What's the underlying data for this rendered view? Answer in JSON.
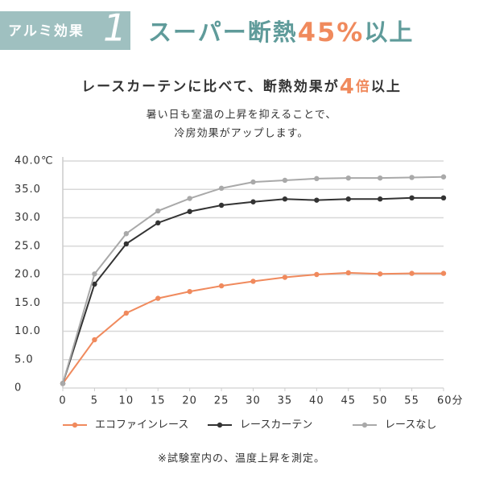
{
  "header": {
    "badge": "アルミ効果",
    "badge_number": "1",
    "title": [
      "スーパー断熱",
      "45%",
      "以上"
    ],
    "subtitle": [
      "レースカーテンに比べて、断熱効果が",
      "4",
      "倍",
      "以上"
    ],
    "description": [
      "暑い日も室温の上昇を抑えることで、",
      "冷房効果がアップします。"
    ]
  },
  "chart_data": {
    "type": "line",
    "x": [
      0,
      5,
      10,
      15,
      20,
      25,
      30,
      35,
      40,
      45,
      50,
      55,
      60
    ],
    "series": [
      {
        "name": "エコファインレース",
        "color": "#f08a5d",
        "values": [
          0.8,
          8.5,
          13.2,
          15.8,
          17.0,
          18.0,
          18.8,
          19.5,
          20.0,
          20.3,
          20.1,
          20.2,
          20.2
        ]
      },
      {
        "name": "レースカーテン",
        "color": "#333333",
        "values": [
          0.8,
          18.3,
          25.4,
          29.1,
          31.1,
          32.2,
          32.8,
          33.3,
          33.1,
          33.3,
          33.3,
          33.5,
          33.5
        ]
      },
      {
        "name": "レースなし",
        "color": "#a9a9a9",
        "values": [
          0.8,
          20.1,
          27.2,
          31.2,
          33.4,
          35.2,
          36.3,
          36.6,
          36.9,
          37.0,
          37.0,
          37.1,
          37.2
        ]
      }
    ],
    "xlim": [
      0,
      60
    ],
    "ylim": [
      0,
      40
    ],
    "xticks": [
      0,
      5,
      10,
      15,
      20,
      25,
      30,
      35,
      40,
      45,
      50,
      55,
      {
        "value": 60,
        "label": "60分"
      }
    ],
    "yticks": [
      0,
      {
        "value": 5,
        "label": "5.0"
      },
      {
        "value": 10,
        "label": "10.0"
      },
      {
        "value": 15,
        "label": "15.0"
      },
      {
        "value": 20,
        "label": "20.0"
      },
      {
        "value": 25,
        "label": "25.0"
      },
      {
        "value": 30,
        "label": "30.0"
      },
      {
        "value": 35,
        "label": "35.0"
      },
      {
        "value": 40,
        "label": "40.0℃"
      }
    ],
    "grid": true,
    "note": "※試験室内の、温度上昇を測定。"
  }
}
